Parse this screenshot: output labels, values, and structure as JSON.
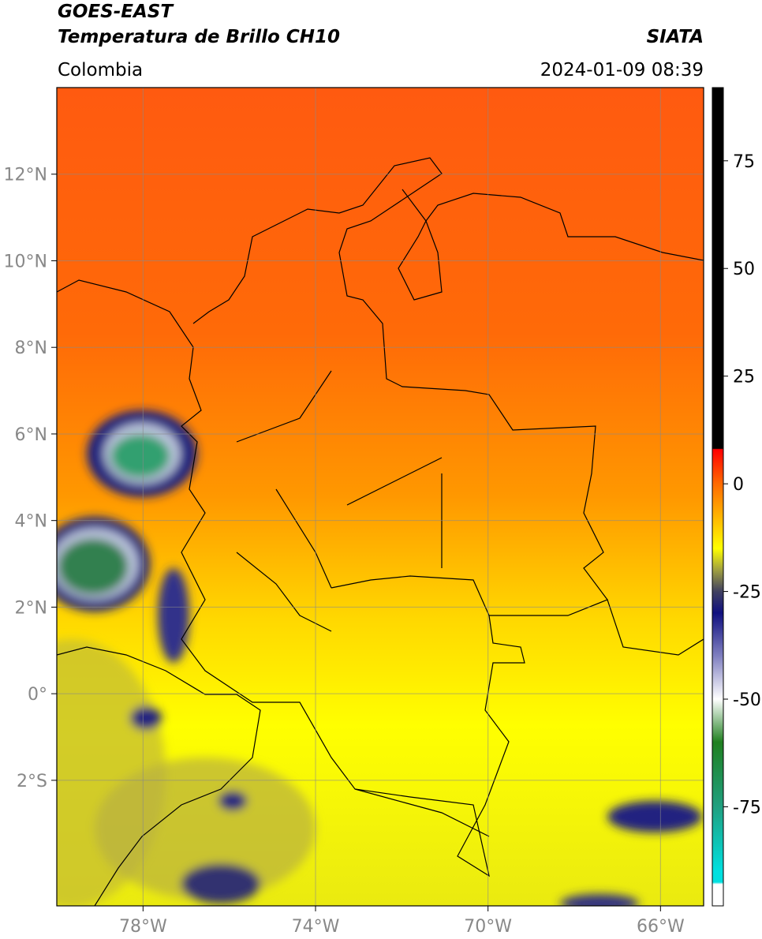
{
  "header": {
    "title": "GOES-EAST",
    "subtitle": "Temperatura de Brillo CH10",
    "region": "Colombia",
    "source": "SIATA",
    "datetime": "2024-01-09 08:39"
  },
  "map": {
    "xlim": [
      -80,
      -65
    ],
    "ylim": [
      -4.9,
      14
    ],
    "xticks": [
      {
        "value": -78,
        "label": "78°W"
      },
      {
        "value": -74,
        "label": "74°W"
      },
      {
        "value": -70,
        "label": "70°W"
      },
      {
        "value": -66,
        "label": "66°W"
      }
    ],
    "yticks": [
      {
        "value": 12,
        "label": "12°N"
      },
      {
        "value": 10,
        "label": "10°N"
      },
      {
        "value": 8,
        "label": "8°N"
      },
      {
        "value": 6,
        "label": "6°N"
      },
      {
        "value": 4,
        "label": "4°N"
      },
      {
        "value": 2,
        "label": "2°N"
      },
      {
        "value": 0,
        "label": "0°"
      },
      {
        "value": -2,
        "label": "2°S"
      }
    ],
    "grid": true
  },
  "colorbar": {
    "lim": [
      -98,
      92
    ],
    "ticks": [
      75,
      50,
      25,
      0,
      -25,
      -50,
      -75
    ],
    "stops": [
      {
        "value": 92,
        "color": "#000000"
      },
      {
        "value": 8.2,
        "color": "#000000"
      },
      {
        "value": 8,
        "color": "#ff0000"
      },
      {
        "value": 0,
        "color": "#ff6a00"
      },
      {
        "value": -10,
        "color": "#ffcc00"
      },
      {
        "value": -15,
        "color": "#ffff00"
      },
      {
        "value": -20,
        "color": "#a0a040"
      },
      {
        "value": -25,
        "color": "#404060"
      },
      {
        "value": -30,
        "color": "#101080"
      },
      {
        "value": -40,
        "color": "#8080c0"
      },
      {
        "value": -50,
        "color": "#ffffff"
      },
      {
        "value": -60,
        "color": "#208020"
      },
      {
        "value": -75,
        "color": "#20a080"
      },
      {
        "value": -90,
        "color": "#00e0e0"
      },
      {
        "value": -92.5,
        "color": "#00e0e0"
      },
      {
        "value": -93,
        "color": "#ffffff"
      },
      {
        "value": -98,
        "color": "#ffffff"
      }
    ]
  }
}
